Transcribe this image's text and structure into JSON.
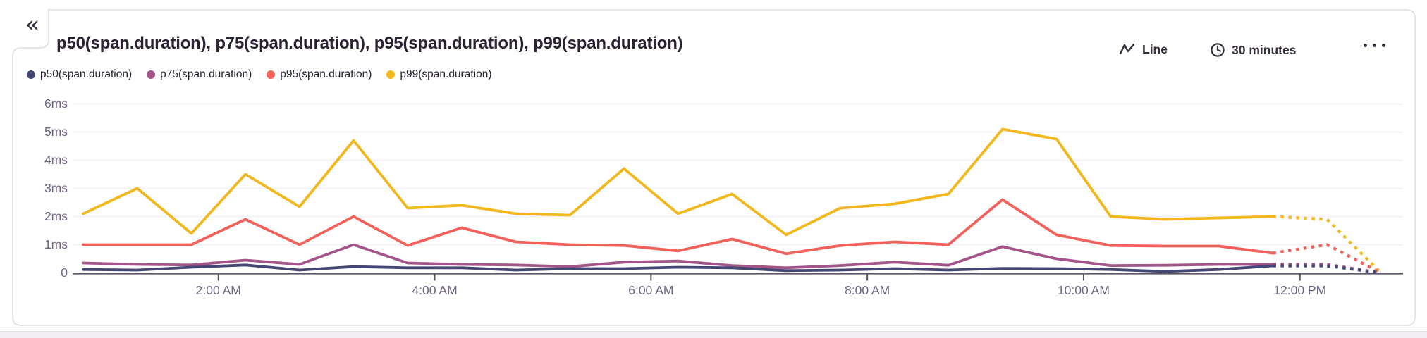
{
  "collapse_button": {
    "icon": "double-chevron-left-icon",
    "glyph": "«"
  },
  "panel": {
    "title": "p50(span.duration), p75(span.duration), p95(span.duration), p99(span.duration)",
    "controls": {
      "chart_type_label": "Line",
      "chart_type_icon": "line-chart-icon",
      "interval_label": "30 minutes",
      "interval_icon": "clock-icon",
      "more_icon": "ellipsis-icon"
    }
  },
  "legend": [
    {
      "label": "p50(span.duration)",
      "color": "#444674"
    },
    {
      "label": "p75(span.duration)",
      "color": "#a35488"
    },
    {
      "label": "p95(span.duration)",
      "color": "#f2605a"
    },
    {
      "label": "p99(span.duration)",
      "color": "#f1b71c"
    }
  ],
  "chart_data": {
    "type": "line",
    "title": "p50(span.duration), p75(span.duration), p95(span.duration), p99(span.duration)",
    "unit": "ms",
    "interval": "30 minutes",
    "grid": true,
    "legend_position": "top-left",
    "ylim": [
      0,
      6.1
    ],
    "yticks": [
      {
        "label": "0",
        "value": 0
      },
      {
        "label": "1ms",
        "value": 1
      },
      {
        "label": "2ms",
        "value": 2
      },
      {
        "label": "3ms",
        "value": 3
      },
      {
        "label": "4ms",
        "value": 4
      },
      {
        "label": "5ms",
        "value": 5
      },
      {
        "label": "6ms",
        "value": 6
      }
    ],
    "xticks": [
      {
        "label": "2:00 AM",
        "index": 2.5
      },
      {
        "label": "4:00 AM",
        "index": 6.5
      },
      {
        "label": "6:00 AM",
        "index": 10.5
      },
      {
        "label": "8:00 AM",
        "index": 14.5
      },
      {
        "label": "10:00 AM",
        "index": 18.5
      },
      {
        "label": "12:00 PM",
        "index": 22.5
      }
    ],
    "point_count": 25,
    "solid_until_index": 22,
    "series": [
      {
        "name": "p99(span.duration)",
        "color": "#f1b71c",
        "values": [
          2.1,
          3.0,
          1.4,
          3.5,
          2.35,
          4.7,
          2.3,
          2.4,
          2.1,
          2.05,
          3.7,
          2.1,
          2.8,
          1.35,
          2.3,
          2.45,
          2.8,
          5.1,
          4.75,
          2.0,
          1.9,
          1.95,
          2.0,
          1.9,
          0
        ]
      },
      {
        "name": "p95(span.duration)",
        "color": "#f2605a",
        "values": [
          1.0,
          1.0,
          1.0,
          1.9,
          1.0,
          2.0,
          0.97,
          1.6,
          1.1,
          1.0,
          0.97,
          0.78,
          1.2,
          0.68,
          0.97,
          1.1,
          1.0,
          2.6,
          1.35,
          0.97,
          0.95,
          0.95,
          0.7,
          1.0,
          0
        ]
      },
      {
        "name": "p75(span.duration)",
        "color": "#a35488",
        "values": [
          0.35,
          0.3,
          0.28,
          0.45,
          0.3,
          1.0,
          0.35,
          0.3,
          0.28,
          0.22,
          0.38,
          0.42,
          0.26,
          0.18,
          0.26,
          0.38,
          0.27,
          0.93,
          0.5,
          0.26,
          0.27,
          0.3,
          0.3,
          0.3,
          0
        ]
      },
      {
        "name": "p50(span.duration)",
        "color": "#444674",
        "values": [
          0.12,
          0.1,
          0.2,
          0.28,
          0.1,
          0.22,
          0.18,
          0.18,
          0.1,
          0.15,
          0.15,
          0.2,
          0.18,
          0.08,
          0.1,
          0.15,
          0.1,
          0.16,
          0.15,
          0.12,
          0.05,
          0.12,
          0.25,
          0.25,
          0
        ]
      }
    ]
  }
}
